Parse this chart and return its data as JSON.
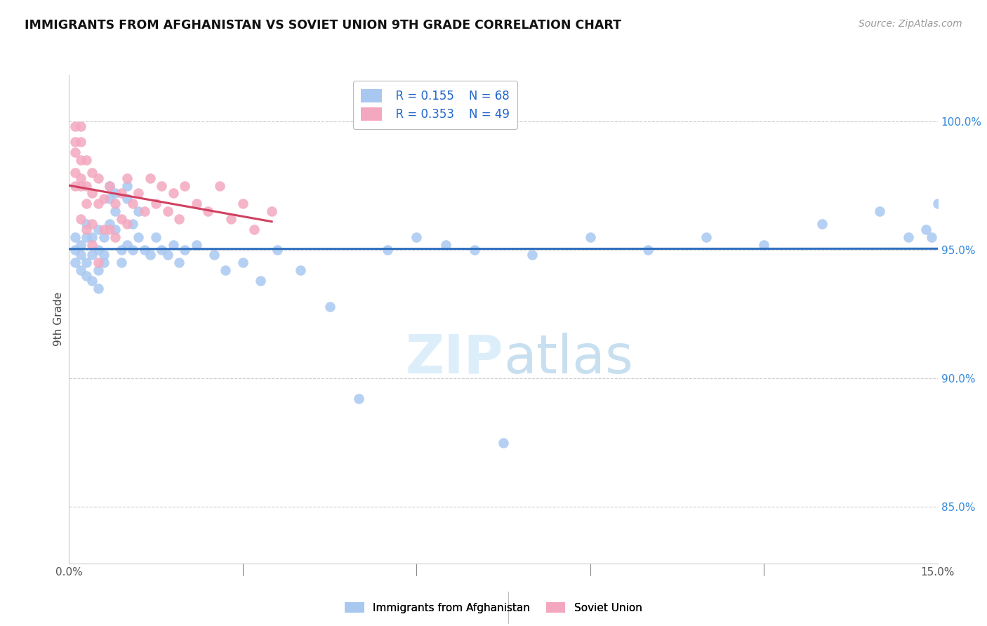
{
  "title": "IMMIGRANTS FROM AFGHANISTAN VS SOVIET UNION 9TH GRADE CORRELATION CHART",
  "source": "Source: ZipAtlas.com",
  "ylabel": "9th Grade",
  "ytick_labels": [
    "85.0%",
    "90.0%",
    "95.0%",
    "100.0%"
  ],
  "ytick_values": [
    0.85,
    0.9,
    0.95,
    1.0
  ],
  "xlim": [
    0.0,
    0.15
  ],
  "ylim": [
    0.828,
    1.018
  ],
  "legend_r_afg": "R = 0.155",
  "legend_n_afg": "N = 68",
  "legend_r_sov": "R = 0.353",
  "legend_n_sov": "N = 49",
  "color_afg": "#a8c8f0",
  "color_sov": "#f4a8c0",
  "color_afg_line": "#3070c0",
  "color_sov_line": "#d04060",
  "watermark_zip": "ZIP",
  "watermark_atlas": "atlas",
  "watermark_color": "#dceefa",
  "grid_color": "#cccccc",
  "afg_x": [
    0.001,
    0.001,
    0.001,
    0.002,
    0.002,
    0.002,
    0.003,
    0.003,
    0.003,
    0.003,
    0.004,
    0.004,
    0.004,
    0.005,
    0.005,
    0.005,
    0.005,
    0.006,
    0.006,
    0.006,
    0.007,
    0.007,
    0.007,
    0.008,
    0.008,
    0.008,
    0.009,
    0.009,
    0.01,
    0.01,
    0.01,
    0.011,
    0.011,
    0.012,
    0.012,
    0.013,
    0.014,
    0.015,
    0.016,
    0.017,
    0.018,
    0.019,
    0.02,
    0.022,
    0.025,
    0.027,
    0.03,
    0.033,
    0.036,
    0.04,
    0.045,
    0.05,
    0.055,
    0.06,
    0.065,
    0.07,
    0.075,
    0.08,
    0.09,
    0.1,
    0.11,
    0.12,
    0.13,
    0.14,
    0.145,
    0.148,
    0.149,
    0.15
  ],
  "afg_y": [
    0.95,
    0.955,
    0.945,
    0.948,
    0.952,
    0.942,
    0.945,
    0.955,
    0.96,
    0.94,
    0.948,
    0.955,
    0.938,
    0.942,
    0.95,
    0.958,
    0.935,
    0.945,
    0.955,
    0.948,
    0.97,
    0.975,
    0.96,
    0.965,
    0.972,
    0.958,
    0.95,
    0.945,
    0.952,
    0.97,
    0.975,
    0.96,
    0.95,
    0.965,
    0.955,
    0.95,
    0.948,
    0.955,
    0.95,
    0.948,
    0.952,
    0.945,
    0.95,
    0.952,
    0.948,
    0.942,
    0.945,
    0.938,
    0.95,
    0.942,
    0.928,
    0.892,
    0.95,
    0.955,
    0.952,
    0.95,
    0.875,
    0.948,
    0.955,
    0.95,
    0.955,
    0.952,
    0.96,
    0.965,
    0.955,
    0.958,
    0.955,
    0.968
  ],
  "sov_x": [
    0.001,
    0.001,
    0.001,
    0.001,
    0.001,
    0.002,
    0.002,
    0.002,
    0.002,
    0.002,
    0.002,
    0.003,
    0.003,
    0.003,
    0.003,
    0.004,
    0.004,
    0.004,
    0.004,
    0.005,
    0.005,
    0.005,
    0.006,
    0.006,
    0.007,
    0.007,
    0.008,
    0.008,
    0.009,
    0.009,
    0.01,
    0.01,
    0.011,
    0.012,
    0.013,
    0.014,
    0.015,
    0.016,
    0.017,
    0.018,
    0.019,
    0.02,
    0.022,
    0.024,
    0.026,
    0.028,
    0.03,
    0.032,
    0.035
  ],
  "sov_y": [
    0.988,
    0.992,
    0.998,
    0.98,
    0.975,
    0.985,
    0.978,
    0.992,
    0.998,
    0.975,
    0.962,
    0.985,
    0.975,
    0.968,
    0.958,
    0.98,
    0.972,
    0.96,
    0.952,
    0.978,
    0.968,
    0.945,
    0.97,
    0.958,
    0.975,
    0.958,
    0.968,
    0.955,
    0.972,
    0.962,
    0.978,
    0.96,
    0.968,
    0.972,
    0.965,
    0.978,
    0.968,
    0.975,
    0.965,
    0.972,
    0.962,
    0.975,
    0.968,
    0.965,
    0.975,
    0.962,
    0.968,
    0.958,
    0.965
  ]
}
